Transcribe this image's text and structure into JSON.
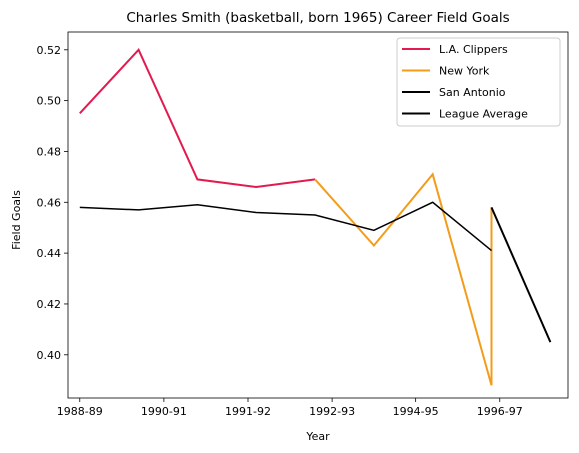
{
  "chart_data": {
    "type": "line",
    "title": "Charles Smith (basketball, born 1965) Career Field Goals",
    "xlabel": "Year",
    "ylabel": "Field Goals",
    "xlim": [
      -0.2,
      8.3
    ],
    "ylim": [
      0.383,
      0.527
    ],
    "x_ticks": [
      {
        "x": 0,
        "label": "1988-89"
      },
      {
        "x": 1.43,
        "label": "1990-91"
      },
      {
        "x": 2.86,
        "label": "1991-92"
      },
      {
        "x": 4.29,
        "label": "1992-93"
      },
      {
        "x": 5.71,
        "label": "1994-95"
      },
      {
        "x": 7.14,
        "label": "1996-97"
      }
    ],
    "y_ticks": [
      {
        "y": 0.4,
        "label": "0.40"
      },
      {
        "y": 0.42,
        "label": "0.42"
      },
      {
        "y": 0.44,
        "label": "0.44"
      },
      {
        "y": 0.46,
        "label": "0.46"
      },
      {
        "y": 0.48,
        "label": "0.48"
      },
      {
        "y": 0.5,
        "label": "0.50"
      },
      {
        "y": 0.52,
        "label": "0.52"
      }
    ],
    "legend_position": "top-right",
    "series": [
      {
        "name": "L.A. Clippers",
        "color": "#e31a4f",
        "width": 2,
        "points": [
          [
            0,
            0.495
          ],
          [
            1,
            0.52
          ],
          [
            2,
            0.469
          ],
          [
            3,
            0.466
          ],
          [
            4,
            0.469
          ]
        ]
      },
      {
        "name": "New York",
        "color": "#f39c1a",
        "width": 2,
        "points": [
          [
            4,
            0.469
          ],
          [
            5,
            0.443
          ],
          [
            6,
            0.471
          ],
          [
            7,
            0.388
          ],
          [
            7,
            0.458
          ]
        ]
      },
      {
        "name": "San Antonio",
        "color": "#000000",
        "width": 2,
        "points": [
          [
            7,
            0.458
          ],
          [
            8,
            0.405
          ]
        ]
      },
      {
        "name": "League Average",
        "color": "#000000",
        "width": 1.5,
        "points": [
          [
            0,
            0.458
          ],
          [
            1,
            0.457
          ],
          [
            2,
            0.459
          ],
          [
            3,
            0.456
          ],
          [
            4,
            0.455
          ],
          [
            5,
            0.449
          ],
          [
            6,
            0.46
          ],
          [
            7,
            0.441
          ]
        ]
      }
    ]
  }
}
